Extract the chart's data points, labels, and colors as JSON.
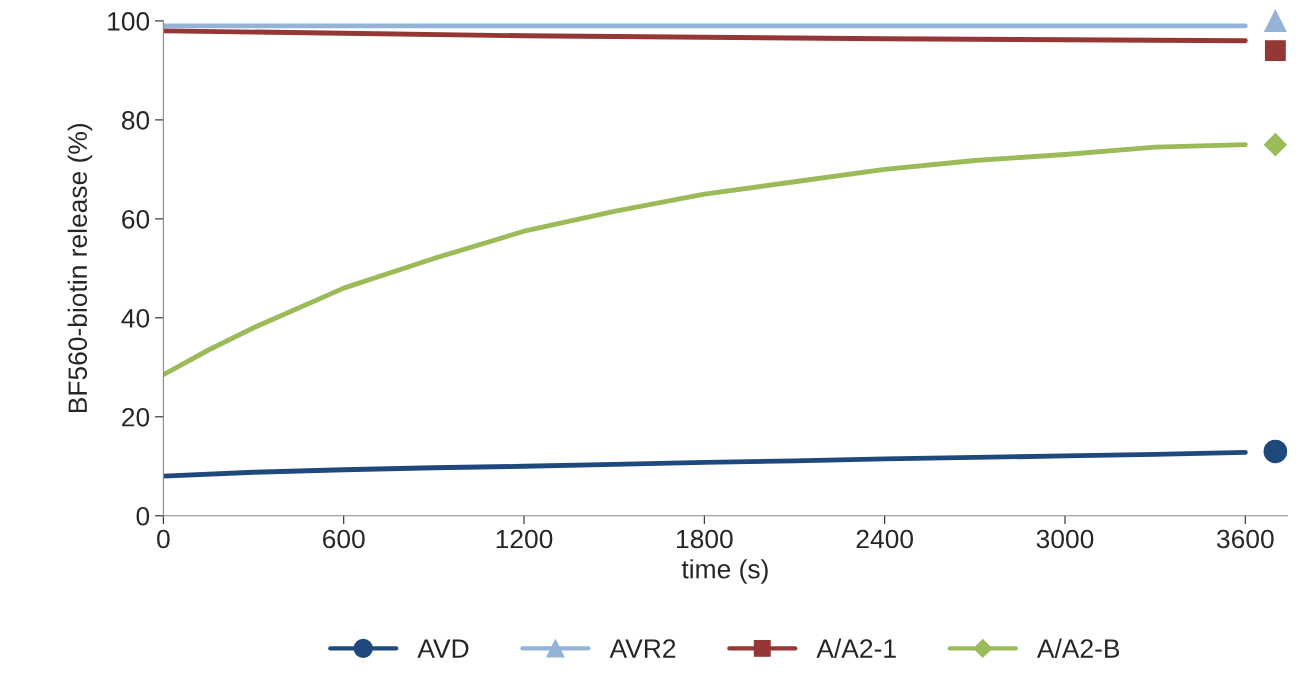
{
  "chart_data": {
    "type": "line",
    "xlabel": "time (s)",
    "ylabel": "BF560-biotin release (%)",
    "xlim": [
      0,
      3740
    ],
    "xticks": [
      0,
      600,
      1200,
      1800,
      2400,
      3000,
      3600
    ],
    "ylim": [
      0,
      100
    ],
    "yticks": [
      0,
      20,
      40,
      60,
      80,
      100
    ],
    "grid": false,
    "legend": "bottom",
    "series": [
      {
        "name": "AVD",
        "color": "#1f497d",
        "x": [
          0,
          300,
          600,
          900,
          1200,
          1500,
          1800,
          2100,
          2400,
          2700,
          3000,
          3300,
          3600
        ],
        "values": [
          8,
          8.8,
          9.3,
          9.7,
          10,
          10.4,
          10.8,
          11.1,
          11.5,
          11.8,
          12.1,
          12.4,
          12.8
        ]
      },
      {
        "name": "AVR2",
        "color": "#95b3d7",
        "x": [
          0,
          600,
          1200,
          1800,
          2400,
          3000,
          3600
        ],
        "values": [
          99,
          99,
          99,
          99,
          99,
          99,
          99
        ]
      },
      {
        "name": "A/A2-1",
        "color": "#953735",
        "x": [
          0,
          600,
          1200,
          1800,
          2400,
          3000,
          3600
        ],
        "values": [
          98,
          97.5,
          97,
          96.7,
          96.4,
          96.2,
          96
        ]
      },
      {
        "name": "A/A2-B",
        "color": "#9bbb59",
        "x": [
          0,
          150,
          300,
          450,
          600,
          900,
          1200,
          1500,
          1800,
          2100,
          2400,
          2700,
          3000,
          3300,
          3600
        ],
        "values": [
          28.5,
          33.5,
          38,
          42,
          46,
          52,
          57.5,
          61.5,
          65,
          67.5,
          70,
          71.8,
          73,
          74.5,
          75
        ]
      },
      {
        "type": "scatter",
        "marker": "circle",
        "color": "#1f497d",
        "x": [
          3700
        ],
        "values": [
          13
        ]
      },
      {
        "type": "scatter",
        "marker": "triangle",
        "color": "#95b3d7",
        "x": [
          3700
        ],
        "values": [
          100
        ]
      },
      {
        "type": "scatter",
        "marker": "square",
        "color": "#953735",
        "x": [
          3700
        ],
        "values": [
          94
        ]
      },
      {
        "type": "scatter",
        "marker": "diamond",
        "color": "#9bbb59",
        "x": [
          3700
        ],
        "values": [
          75
        ]
      }
    ]
  }
}
